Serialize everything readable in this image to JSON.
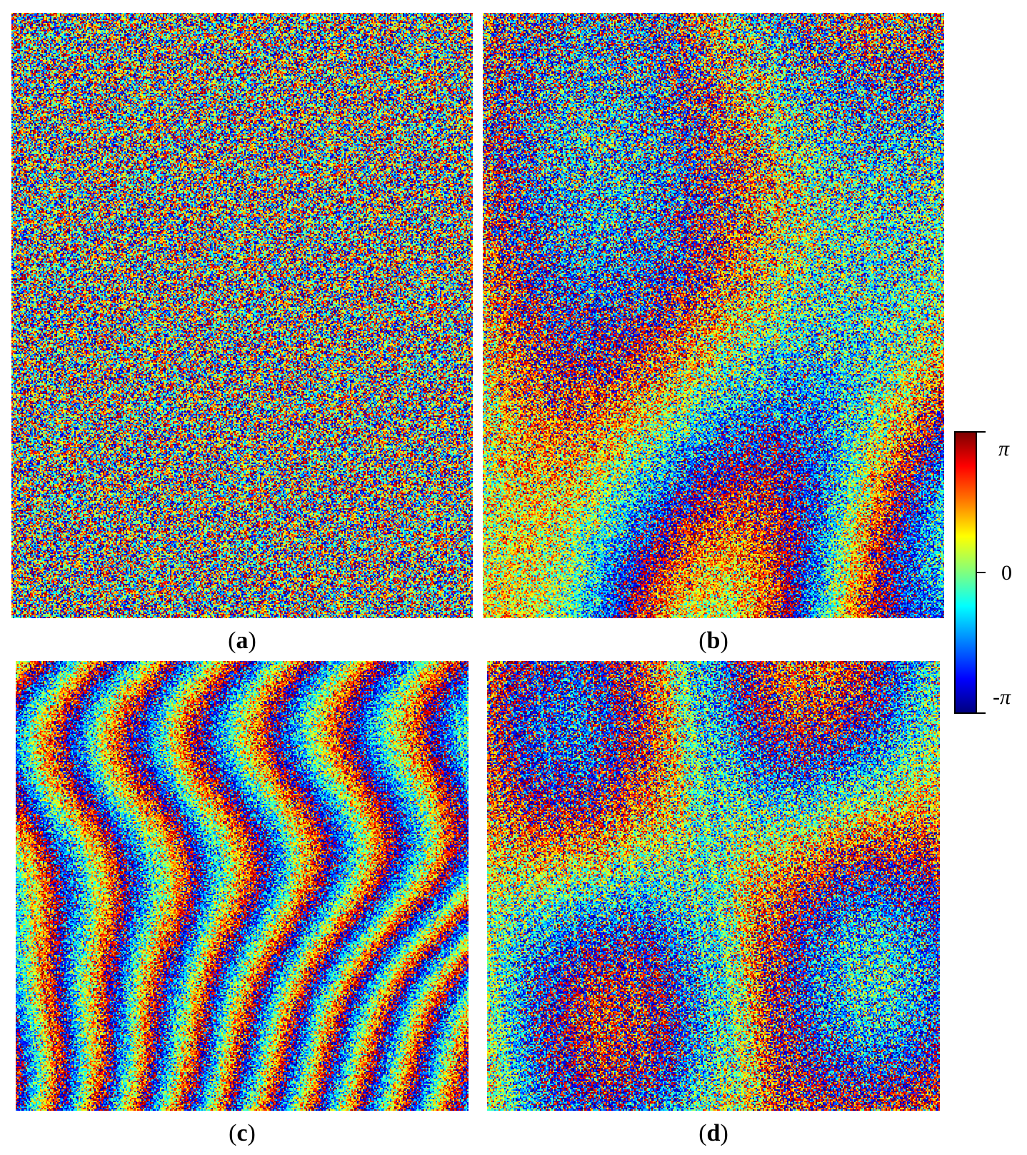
{
  "panels": [
    {
      "id": "a",
      "label": "a"
    },
    {
      "id": "b",
      "label": "b"
    },
    {
      "id": "c",
      "label": "c"
    },
    {
      "id": "d",
      "label": "d"
    }
  ],
  "colorbar": {
    "max_label": "π",
    "mid_label": "0",
    "min_prefix": "-",
    "min_symbol": "π",
    "colormap": "jet"
  }
}
